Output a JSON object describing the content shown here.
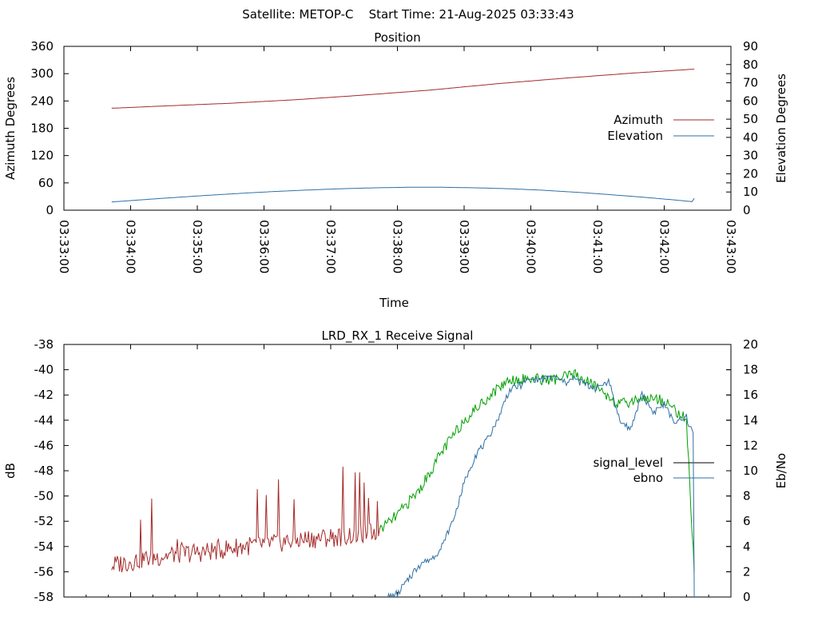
{
  "page_title": "Satellite: METOP-C    Start Time: 21-Aug-2025 03:33:43",
  "chart_data": [
    {
      "type": "line",
      "title": "Position",
      "xlabel": "Time",
      "ylabel": "Azimuth Degrees",
      "y2label": "Elevation Degrees",
      "x_ticks": [
        "03:33:00",
        "03:34:00",
        "03:35:00",
        "03:36:00",
        "03:37:00",
        "03:38:00",
        "03:39:00",
        "03:40:00",
        "03:41:00",
        "03:42:00",
        "03:43:00"
      ],
      "x_range_seconds": [
        0,
        600
      ],
      "ylim": [
        0,
        360
      ],
      "y_ticks": [
        0,
        60,
        120,
        180,
        240,
        300,
        360
      ],
      "y2lim": [
        0,
        90
      ],
      "y2_ticks": [
        0,
        10,
        20,
        30,
        40,
        50,
        60,
        70,
        80,
        90
      ],
      "grid": false,
      "legend_position": "right",
      "series": [
        {
          "name": "Azimuth",
          "axis": "y",
          "color": "#a52a2a",
          "x": [
            43,
            90,
            150,
            210,
            270,
            330,
            390,
            450,
            510,
            567
          ],
          "y": [
            224,
            229,
            235,
            243,
            253,
            264,
            278,
            290,
            301,
            310
          ]
        },
        {
          "name": "Elevation",
          "axis": "y2",
          "color": "#2f6fa3",
          "x": [
            43,
            70,
            100,
            130,
            160,
            190,
            220,
            250,
            280,
            310,
            340,
            370,
            400,
            430,
            460,
            490,
            520,
            550,
            565,
            567
          ],
          "y": [
            4.5,
            5.7,
            7.0,
            8.2,
            9.3,
            10.3,
            11.1,
            11.8,
            12.3,
            12.6,
            12.6,
            12.3,
            11.8,
            11.0,
            9.9,
            8.6,
            7.2,
            5.6,
            4.7,
            6.5
          ]
        }
      ]
    },
    {
      "type": "line",
      "title": "LRD_RX_1 Receive Signal",
      "xlabel": "",
      "ylabel": "dB",
      "y2label": "Eb/No",
      "x_range_seconds": [
        0,
        600
      ],
      "ylim": [
        -58,
        -38
      ],
      "y_ticks": [
        -58,
        -56,
        -54,
        -52,
        -50,
        -48,
        -46,
        -44,
        -42,
        -40,
        -38
      ],
      "y2lim": [
        0,
        20
      ],
      "y2_ticks": [
        0,
        2,
        4,
        6,
        8,
        10,
        12,
        14,
        16,
        18,
        20
      ],
      "grid": false,
      "legend_position": "right",
      "series": [
        {
          "name": "signal_level",
          "axis": "y",
          "color": "#000000",
          "segment_colors": {
            "low": "#a52a2a",
            "high": "#00a000"
          },
          "x": [
            43,
            70,
            100,
            130,
            160,
            190,
            220,
            250,
            280,
            290,
            300,
            320,
            340,
            360,
            380,
            390,
            400,
            420,
            440,
            460,
            480,
            500,
            520,
            540,
            560,
            567
          ],
          "y": [
            -55.5,
            -55.0,
            -54.6,
            -54.4,
            -54.0,
            -53.7,
            -53.4,
            -53.2,
            -52.8,
            -52.3,
            -51.5,
            -49.5,
            -46.5,
            -44.0,
            -42.3,
            -41.5,
            -40.8,
            -40.7,
            -40.8,
            -40.4,
            -41.4,
            -42.8,
            -42.2,
            -42.4,
            -44.0,
            -56.0
          ]
        },
        {
          "name": "ebno",
          "axis": "y2",
          "color": "#2f6fa3",
          "x": [
            290,
            300,
            310,
            320,
            330,
            340,
            350,
            360,
            370,
            380,
            390,
            400,
            410,
            420,
            430,
            440,
            450,
            460,
            470,
            480,
            490,
            500,
            510,
            520,
            530,
            540,
            550,
            560,
            566,
            567
          ],
          "y": [
            0,
            0.2,
            1.5,
            2.6,
            3.0,
            4.0,
            6.0,
            9.0,
            11.2,
            12.3,
            14.0,
            16.3,
            16.8,
            17.2,
            17.3,
            17.5,
            17.0,
            17.3,
            16.8,
            16.5,
            17.2,
            14.0,
            13.2,
            16.2,
            14.6,
            15.2,
            13.8,
            14.2,
            13.0,
            0
          ]
        }
      ]
    }
  ]
}
